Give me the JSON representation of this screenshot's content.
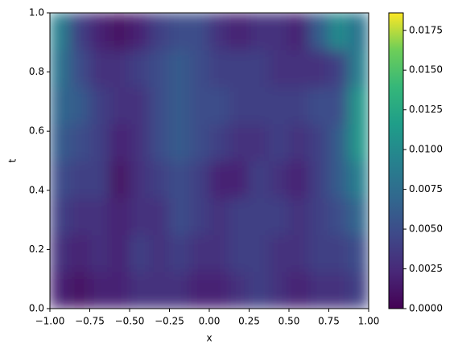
{
  "chart_data": {
    "type": "heatmap",
    "xlabel": "x",
    "ylabel": "t",
    "colormap": "viridis",
    "x": [
      -0.9375,
      -0.8125,
      -0.6875,
      -0.5625,
      -0.4375,
      -0.3125,
      -0.1875,
      -0.0625,
      0.0625,
      0.1875,
      0.3125,
      0.4375,
      0.5625,
      0.6875,
      0.8125,
      0.9375
    ],
    "y": [
      0.0625,
      0.1875,
      0.3125,
      0.4375,
      0.5625,
      0.6875,
      0.8125,
      0.9375
    ],
    "z": [
      [
        0.002,
        0.001,
        0.002,
        0.002,
        0.003,
        0.003,
        0.003,
        0.002,
        0.002,
        0.003,
        0.004,
        0.003,
        0.002,
        0.003,
        0.003,
        0.004
      ],
      [
        0.003,
        0.002,
        0.003,
        0.002,
        0.004,
        0.003,
        0.004,
        0.003,
        0.003,
        0.004,
        0.004,
        0.003,
        0.003,
        0.004,
        0.004,
        0.005
      ],
      [
        0.004,
        0.003,
        0.003,
        0.002,
        0.003,
        0.003,
        0.005,
        0.004,
        0.003,
        0.004,
        0.004,
        0.004,
        0.003,
        0.004,
        0.005,
        0.007
      ],
      [
        0.005,
        0.004,
        0.004,
        0.001,
        0.003,
        0.004,
        0.005,
        0.004,
        0.002,
        0.002,
        0.004,
        0.003,
        0.002,
        0.004,
        0.006,
        0.009
      ],
      [
        0.006,
        0.005,
        0.004,
        0.002,
        0.003,
        0.005,
        0.006,
        0.005,
        0.004,
        0.003,
        0.003,
        0.004,
        0.003,
        0.004,
        0.006,
        0.011
      ],
      [
        0.007,
        0.006,
        0.004,
        0.003,
        0.003,
        0.005,
        0.006,
        0.005,
        0.005,
        0.004,
        0.004,
        0.004,
        0.004,
        0.005,
        0.005,
        0.011
      ],
      [
        0.008,
        0.005,
        0.003,
        0.003,
        0.004,
        0.005,
        0.006,
        0.005,
        0.004,
        0.004,
        0.004,
        0.003,
        0.003,
        0.003,
        0.004,
        0.009
      ],
      [
        0.009,
        0.004,
        0.002,
        0.001,
        0.002,
        0.004,
        0.005,
        0.005,
        0.003,
        0.002,
        0.003,
        0.003,
        0.002,
        0.006,
        0.01,
        0.008
      ]
    ],
    "xlim": [
      -1,
      1
    ],
    "ylim": [
      0,
      1
    ],
    "clim": [
      0,
      0.0186
    ],
    "xticks": [
      {
        "value": -1,
        "label": "−1.00"
      },
      {
        "value": -0.75,
        "label": "−0.75"
      },
      {
        "value": -0.5,
        "label": "−0.50"
      },
      {
        "value": -0.25,
        "label": "−0.25"
      },
      {
        "value": 0,
        "label": "0.00"
      },
      {
        "value": 0.25,
        "label": "0.25"
      },
      {
        "value": 0.5,
        "label": "0.50"
      },
      {
        "value": 0.75,
        "label": "0.75"
      },
      {
        "value": 1,
        "label": "1.00"
      }
    ],
    "yticks": [
      {
        "value": 0,
        "label": "0.0"
      },
      {
        "value": 0.2,
        "label": "0.2"
      },
      {
        "value": 0.4,
        "label": "0.4"
      },
      {
        "value": 0.6,
        "label": "0.6"
      },
      {
        "value": 0.8,
        "label": "0.8"
      },
      {
        "value": 1,
        "label": "1.0"
      }
    ],
    "cticks": [
      {
        "value": 0,
        "label": "0.0000"
      },
      {
        "value": 0.0025,
        "label": "0.0025"
      },
      {
        "value": 0.005,
        "label": "0.0050"
      },
      {
        "value": 0.0075,
        "label": "0.0075"
      },
      {
        "value": 0.01,
        "label": "0.0100"
      },
      {
        "value": 0.0125,
        "label": "0.0125"
      },
      {
        "value": 0.015,
        "label": "0.0150"
      },
      {
        "value": 0.0175,
        "label": "0.0175"
      }
    ]
  }
}
